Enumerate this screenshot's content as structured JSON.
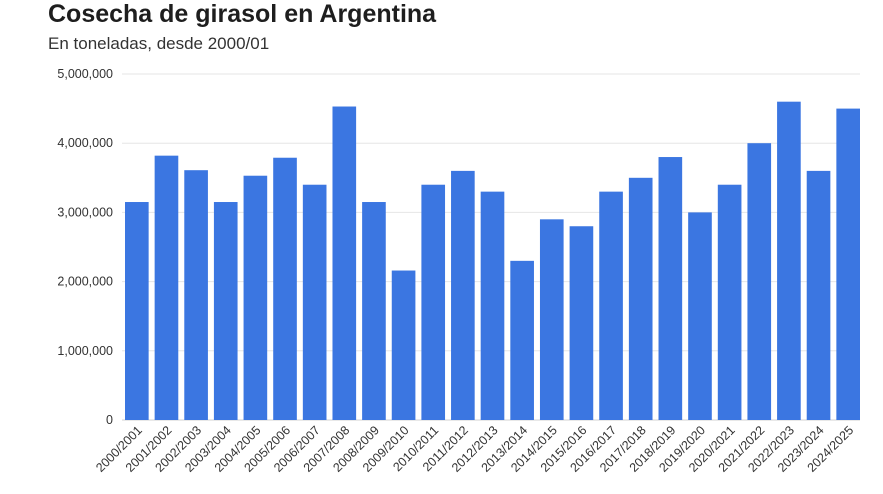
{
  "header": {
    "title": "Cosecha de girasol en Argentina",
    "subtitle": "En toneladas, desde 2000/01"
  },
  "chart_data": {
    "type": "bar",
    "title": "Cosecha de girasol en Argentina",
    "subtitle": "En toneladas, desde 2000/01",
    "xlabel": "",
    "ylabel": "",
    "ylim": [
      0,
      5000000
    ],
    "yticks": [
      0,
      1000000,
      2000000,
      3000000,
      4000000,
      5000000
    ],
    "ytick_labels": [
      "0",
      "1,000,000",
      "2,000,000",
      "3,000,000",
      "4,000,000",
      "5,000,000"
    ],
    "grid": true,
    "bar_color": "#3b76e1",
    "categories": [
      "2000/2001",
      "2001/2002",
      "2002/2003",
      "2003/2004",
      "2004/2005",
      "2005/2006",
      "2006/2007",
      "2007/2008",
      "2008/2009",
      "2009/2010",
      "2010/2011",
      "2011/2012",
      "2012/2013",
      "2013/2014",
      "2014/2015",
      "2015/2016",
      "2016/2017",
      "2017/2018",
      "2018/2019",
      "2019/2020",
      "2020/2021",
      "2021/2022",
      "2022/2023",
      "2023/2024",
      "2024/2025"
    ],
    "values": [
      3150000,
      3820000,
      3610000,
      3150000,
      3530000,
      3790000,
      3400000,
      4530000,
      3150000,
      2160000,
      3400000,
      3600000,
      3300000,
      2300000,
      2900000,
      2800000,
      3300000,
      3500000,
      3800000,
      3000000,
      3400000,
      4000000,
      4600000,
      3600000,
      4500000
    ]
  }
}
